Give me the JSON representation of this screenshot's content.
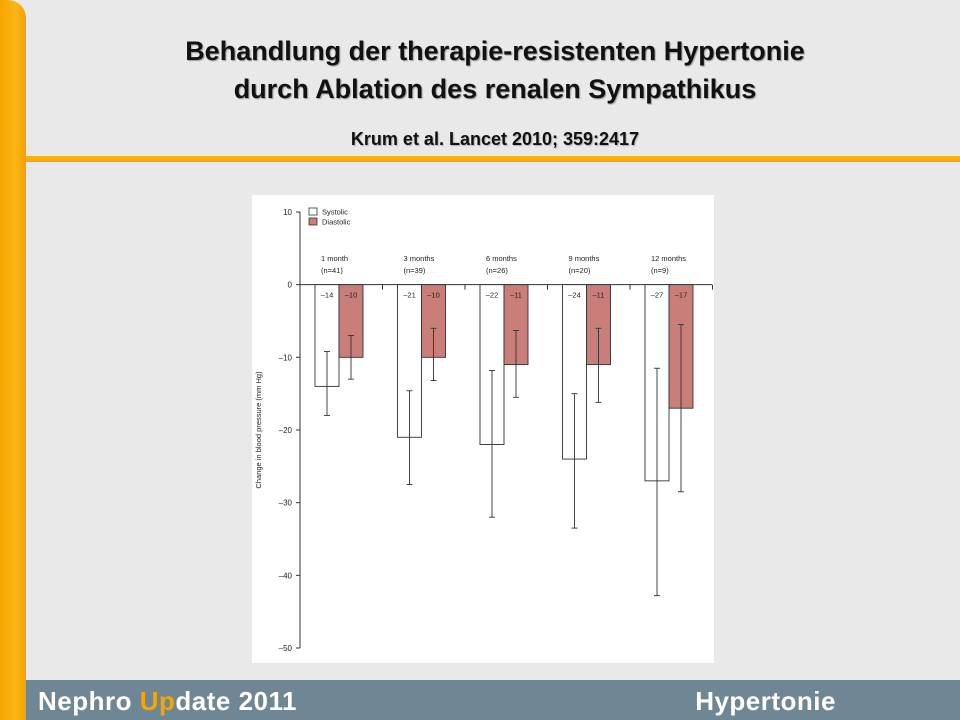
{
  "slide": {
    "title": "Behandlung der therapie-resistenten Hypertonie\ndurch Ablation des renalen Sympathikus",
    "citation": "Krum et al. Lancet 2010; 359:2417"
  },
  "footer": {
    "brand_1": "Nephro ",
    "brand_2": "Up",
    "brand_3": "date 2011",
    "section": "Hypertonie"
  },
  "colors": {
    "accent": "#f7a600",
    "footer": "#6f8794",
    "diastolic": "#c97e79",
    "systolic": "#ffffff"
  },
  "chart_data": {
    "type": "bar",
    "title": "",
    "xlabel": "",
    "ylabel": "Change in blood pressure (mm Hg)",
    "ylim": [
      -50,
      10
    ],
    "yticks": [
      10,
      0,
      -10,
      -20,
      -30,
      -40,
      -50
    ],
    "legend_position": "top-left",
    "categories": [
      {
        "label": "1 month",
        "n": "(n=41)"
      },
      {
        "label": "3 months",
        "n": "(n=39)"
      },
      {
        "label": "6 months",
        "n": "(n=26)"
      },
      {
        "label": "9 months",
        "n": "(n=20)"
      },
      {
        "label": "12 months",
        "n": "(n=9)"
      }
    ],
    "series": [
      {
        "name": "Systolic",
        "values": [
          -14,
          -21,
          -22,
          -24,
          -27
        ],
        "value_labels": [
          "–14",
          "–21",
          "–22",
          "–24",
          "–27"
        ],
        "error_low": [
          -18,
          -27.5,
          -32,
          -33.5,
          -42.8
        ],
        "error_high": [
          -9.2,
          -14.6,
          -11.8,
          -15,
          -11.5
        ]
      },
      {
        "name": "Diastolic",
        "values": [
          -10,
          -10,
          -11,
          -11,
          -17
        ],
        "value_labels": [
          "–10",
          "–10",
          "–11",
          "–11",
          "–17"
        ],
        "error_low": [
          -13,
          -13.2,
          -15.5,
          -16.2,
          -28.5
        ],
        "error_high": [
          -7,
          -6,
          -6.3,
          -6,
          -5.5
        ]
      }
    ]
  }
}
